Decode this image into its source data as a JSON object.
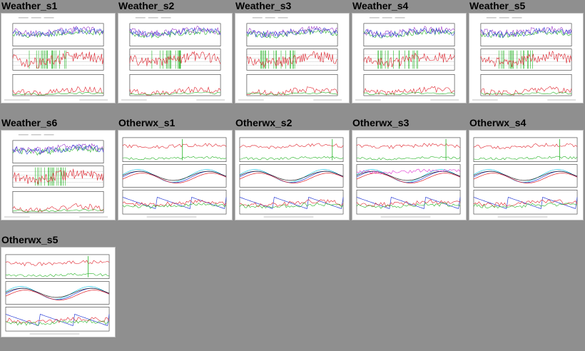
{
  "colors": {
    "background": "#8f8f8f",
    "red": "#e0202a",
    "green": "#22b322",
    "blue": "#2b3fd6",
    "purple": "#9a38c9",
    "cyan": "#20c8e8",
    "magenta": "#e02ad0",
    "black": "#222222"
  },
  "thumbnails": [
    {
      "title": "Weather_s1",
      "kind": "weather"
    },
    {
      "title": "Weather_s2",
      "kind": "weather"
    },
    {
      "title": "Weather_s3",
      "kind": "weather"
    },
    {
      "title": "Weather_s4",
      "kind": "weather"
    },
    {
      "title": "Weather_s5",
      "kind": "weather"
    },
    {
      "title": "Weather_s6",
      "kind": "weather"
    },
    {
      "title": "Otherwx_s1",
      "kind": "otherwx"
    },
    {
      "title": "Otherwx_s2",
      "kind": "otherwx"
    },
    {
      "title": "Otherwx_s3",
      "kind": "otherwx"
    },
    {
      "title": "Otherwx_s4",
      "kind": "otherwx"
    },
    {
      "title": "Otherwx_s5",
      "kind": "otherwx"
    }
  ]
}
